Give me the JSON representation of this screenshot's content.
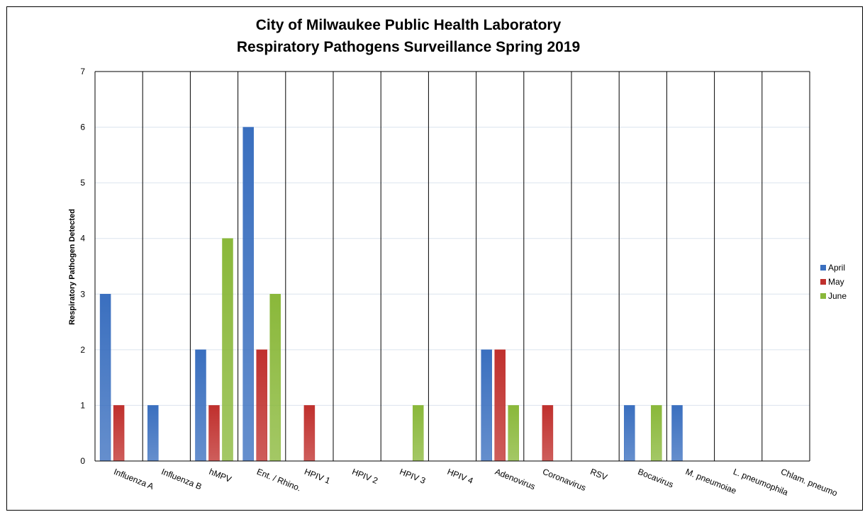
{
  "chart_data": {
    "type": "bar",
    "title_lines": [
      "City of Milwaukee Public Health Laboratory",
      "Respiratory Pathogens Surveillance Spring 2019"
    ],
    "xlabel": "",
    "ylabel": "Respiratory Pathogen Detected",
    "ylim": [
      0,
      7
    ],
    "yticks": [
      "0",
      "1",
      "2",
      "3",
      "4",
      "5",
      "6",
      "7"
    ],
    "grid": "horizontal",
    "legend_position": "right",
    "categories": [
      "Influenza A",
      "Influenza B",
      "hMPV",
      "Ent. / Rhino.",
      "HPIV 1",
      "HPIV 2",
      "HPIV 3",
      "HPIV 4",
      "Adenovirus",
      "Coronavirus",
      "RSV",
      "Bocavirus",
      "M. pneumoiae",
      "L. pneumophila",
      "Chlam. pneumo"
    ],
    "series": [
      {
        "name": "April",
        "color": "#3a6fbf",
        "values": [
          3,
          1,
          2,
          6,
          0,
          0,
          0,
          0,
          2,
          0,
          0,
          1,
          1,
          0,
          0
        ]
      },
      {
        "name": "May",
        "color": "#c0302d",
        "values": [
          1,
          0,
          1,
          2,
          1,
          0,
          0,
          0,
          2,
          1,
          0,
          0,
          0,
          0,
          0
        ]
      },
      {
        "name": "June",
        "color": "#8ab83a",
        "values": [
          0,
          0,
          4,
          3,
          0,
          0,
          1,
          0,
          1,
          0,
          0,
          1,
          0,
          0,
          0
        ]
      }
    ]
  }
}
